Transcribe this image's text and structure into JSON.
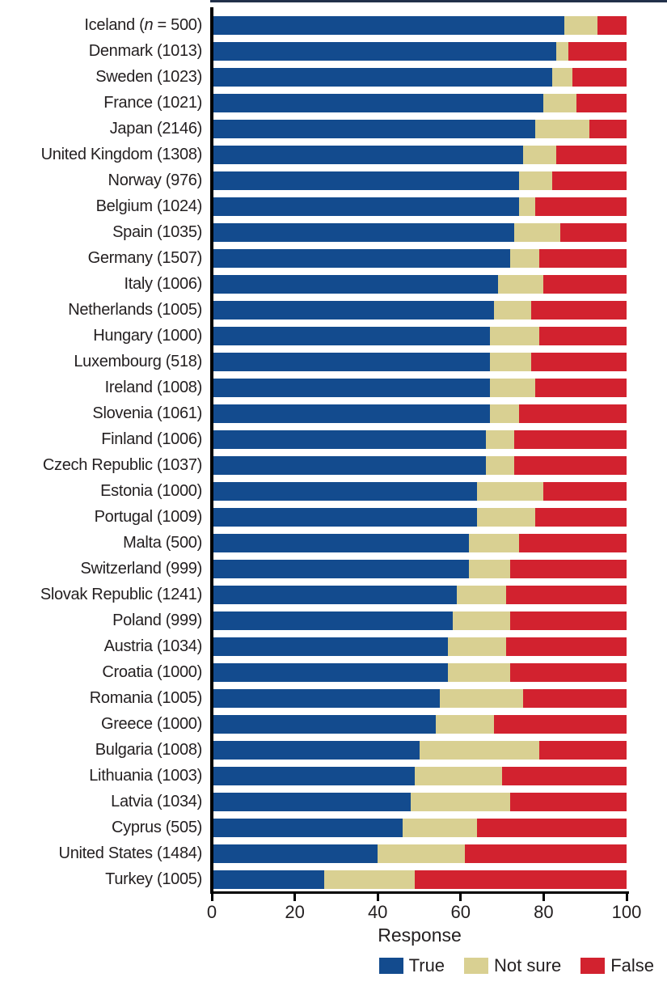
{
  "colors": {
    "background": "#ffffff",
    "axis": "#000000",
    "text": "#231f20"
  },
  "chart_data": {
    "type": "bar",
    "orientation": "horizontal-stacked",
    "title": "",
    "xlabel": "Response",
    "ylabel": "",
    "xlim": [
      0,
      100
    ],
    "x_ticks": [
      0,
      20,
      40,
      60,
      80,
      100
    ],
    "grid": false,
    "legend_position": "bottom-right",
    "series": [
      {
        "name": "True",
        "slug": "true",
        "color": "#134b8e"
      },
      {
        "name": "Not sure",
        "slug": "not-sure",
        "color": "#d9d092"
      },
      {
        "name": "False",
        "slug": "false",
        "color": "#d2222f"
      }
    ],
    "rows": [
      {
        "label": "Iceland (n = 500)",
        "values": [
          85,
          8,
          7
        ]
      },
      {
        "label": "Denmark (1013)",
        "values": [
          83,
          3,
          14
        ]
      },
      {
        "label": "Sweden (1023)",
        "values": [
          82,
          5,
          13
        ]
      },
      {
        "label": "France (1021)",
        "values": [
          80,
          8,
          12
        ]
      },
      {
        "label": "Japan (2146)",
        "values": [
          78,
          13,
          9
        ]
      },
      {
        "label": "United Kingdom (1308)",
        "values": [
          75,
          8,
          17
        ]
      },
      {
        "label": "Norway (976)",
        "values": [
          74,
          8,
          18
        ]
      },
      {
        "label": "Belgium (1024)",
        "values": [
          74,
          4,
          22
        ]
      },
      {
        "label": "Spain (1035)",
        "values": [
          73,
          11,
          16
        ]
      },
      {
        "label": "Germany (1507)",
        "values": [
          72,
          7,
          21
        ]
      },
      {
        "label": "Italy (1006)",
        "values": [
          69,
          11,
          20
        ]
      },
      {
        "label": "Netherlands (1005)",
        "values": [
          68,
          9,
          23
        ]
      },
      {
        "label": "Hungary (1000)",
        "values": [
          67,
          12,
          21
        ]
      },
      {
        "label": "Luxembourg (518)",
        "values": [
          67,
          10,
          23
        ]
      },
      {
        "label": "Ireland (1008)",
        "values": [
          67,
          11,
          22
        ]
      },
      {
        "label": "Slovenia (1061)",
        "values": [
          67,
          7,
          26
        ]
      },
      {
        "label": "Finland (1006)",
        "values": [
          66,
          7,
          27
        ]
      },
      {
        "label": "Czech Republic (1037)",
        "values": [
          66,
          7,
          27
        ]
      },
      {
        "label": "Estonia (1000)",
        "values": [
          64,
          16,
          20
        ]
      },
      {
        "label": "Portugal (1009)",
        "values": [
          64,
          14,
          22
        ]
      },
      {
        "label": "Malta (500)",
        "values": [
          62,
          12,
          26
        ]
      },
      {
        "label": "Switzerland (999)",
        "values": [
          62,
          10,
          28
        ]
      },
      {
        "label": "Slovak Republic (1241)",
        "values": [
          59,
          12,
          29
        ]
      },
      {
        "label": "Poland (999)",
        "values": [
          58,
          14,
          28
        ]
      },
      {
        "label": "Austria (1034)",
        "values": [
          57,
          14,
          29
        ]
      },
      {
        "label": "Croatia (1000)",
        "values": [
          57,
          15,
          28
        ]
      },
      {
        "label": "Romania (1005)",
        "values": [
          55,
          20,
          25
        ]
      },
      {
        "label": "Greece (1000)",
        "values": [
          54,
          14,
          32
        ]
      },
      {
        "label": "Bulgaria (1008)",
        "values": [
          50,
          29,
          21
        ]
      },
      {
        "label": "Lithuania (1003)",
        "values": [
          49,
          21,
          30
        ]
      },
      {
        "label": "Latvia (1034)",
        "values": [
          48,
          24,
          28
        ]
      },
      {
        "label": "Cyprus (505)",
        "values": [
          46,
          18,
          36
        ]
      },
      {
        "label": "United States (1484)",
        "values": [
          40,
          21,
          39
        ]
      },
      {
        "label": "Turkey (1005)",
        "values": [
          27,
          22,
          51
        ]
      }
    ]
  }
}
